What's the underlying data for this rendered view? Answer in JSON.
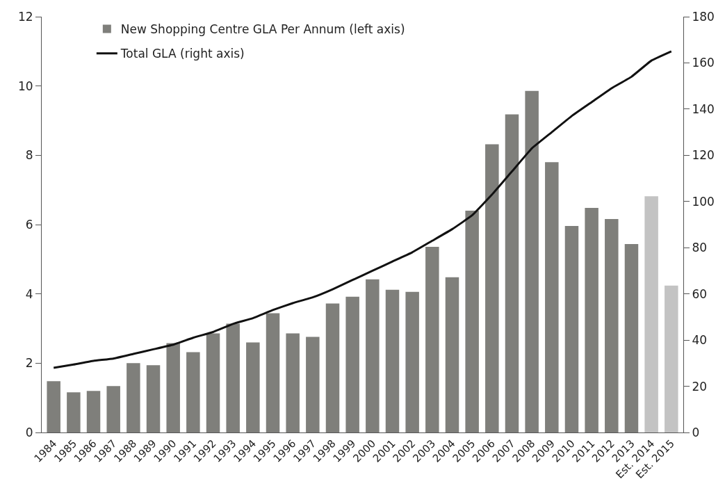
{
  "chart_data": {
    "type": "bar",
    "categories": [
      "1984",
      "1985",
      "1986",
      "1987",
      "1988",
      "1989",
      "1990",
      "1991",
      "1992",
      "1993",
      "1994",
      "1995",
      "1996",
      "1997",
      "1998",
      "1999",
      "2000",
      "2001",
      "2002",
      "2003",
      "2004",
      "2005",
      "2006",
      "2007",
      "2008",
      "2009",
      "2010",
      "2011",
      "2012",
      "2013",
      "Est. 2014",
      "Est. 2015"
    ],
    "series": [
      {
        "name": "New Shopping Centre GLA Per Annum (left axis)",
        "color": "#7f7f7b",
        "colors": [
          "#7f7f7b",
          "#7f7f7b",
          "#7f7f7b",
          "#7f7f7b",
          "#7f7f7b",
          "#7f7f7b",
          "#7f7f7b",
          "#7f7f7b",
          "#7f7f7b",
          "#7f7f7b",
          "#7f7f7b",
          "#7f7f7b",
          "#7f7f7b",
          "#7f7f7b",
          "#7f7f7b",
          "#7f7f7b",
          "#7f7f7b",
          "#7f7f7b",
          "#7f7f7b",
          "#7f7f7b",
          "#7f7f7b",
          "#7f7f7b",
          "#7f7f7b",
          "#7f7f7b",
          "#7f7f7b",
          "#7f7f7b",
          "#7f7f7b",
          "#7f7f7b",
          "#7f7f7b",
          "#7f7f7b",
          "#c3c3c3",
          "#c3c3c3"
        ],
        "values": [
          1.48,
          1.16,
          1.2,
          1.34,
          2.0,
          1.94,
          2.58,
          2.32,
          2.86,
          3.14,
          2.6,
          3.44,
          2.86,
          2.76,
          3.72,
          3.92,
          4.42,
          4.12,
          4.06,
          5.36,
          4.48,
          6.4,
          8.32,
          9.18,
          9.86,
          7.8,
          5.96,
          6.48,
          6.16,
          5.44,
          6.82,
          4.24
        ]
      },
      {
        "name": "Total GLA (right axis)",
        "type": "line",
        "axis": "y2",
        "color": "#111111",
        "values": [
          28,
          29.4,
          31,
          32,
          34,
          36,
          38,
          41,
          43.5,
          47,
          49.5,
          53,
          56,
          58.5,
          62,
          66,
          70,
          74,
          78,
          83,
          88,
          94,
          103,
          113,
          123,
          130,
          137,
          143,
          149,
          154,
          161,
          165
        ]
      }
    ],
    "ylim": [
      0,
      12
    ],
    "yticks": [
      0,
      2,
      4,
      6,
      8,
      10,
      12
    ],
    "y2lim": [
      0,
      180
    ],
    "y2ticks": [
      0,
      20,
      40,
      60,
      80,
      100,
      120,
      140,
      160,
      180
    ],
    "legend": "top left",
    "marker": "none",
    "line_style": "solid"
  }
}
